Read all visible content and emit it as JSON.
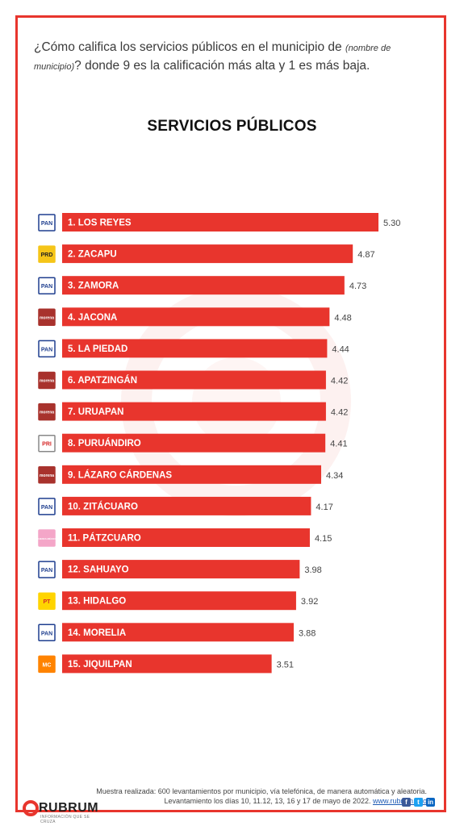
{
  "question": {
    "part1": "¿Cómo califica los servicios públicos en el municipio de ",
    "italic": "(nombre de municipio)",
    "part2": "? donde 9 es la calificación más alta y 1 es más baja."
  },
  "chart_data": {
    "type": "bar",
    "orientation": "horizontal",
    "title": "SERVICIOS PÚBLICOS",
    "xlabel": "",
    "ylabel": "",
    "xlim": [
      0,
      5.3
    ],
    "grid": false,
    "bar_color": "#e8352d",
    "categories": [
      "1. LOS REYES",
      "2. ZACAPU",
      "3. ZAMORA",
      "4. JACONA",
      "5. LA PIEDAD",
      "6. APATZINGÁN",
      "7. URUAPAN",
      "8. PURUÁNDIRO",
      "9. LÁZARO CÁRDENAS",
      "10. ZITÁCUARO",
      "11. PÁTZCUARO",
      "12. SAHUAYO",
      "13. HIDALGO",
      "14. MORELIA",
      "15. JIQUILPAN"
    ],
    "values": [
      5.3,
      4.87,
      4.73,
      4.48,
      4.44,
      4.42,
      4.42,
      4.41,
      4.34,
      4.17,
      4.15,
      3.98,
      3.92,
      3.88,
      3.51
    ],
    "value_labels": [
      "5.30",
      "4.87",
      "4.73",
      "4.48",
      "4.44",
      "4.42",
      "4.42",
      "4.41",
      "4.34",
      "4.17",
      "4.15",
      "3.98",
      "3.92",
      "3.88",
      "3.51"
    ],
    "party_icons": [
      "pan-logo",
      "prd-logo",
      "pan-logo",
      "morena-logo",
      "pan-logo",
      "morena-logo",
      "morena-logo",
      "pri-logo",
      "morena-logo",
      "pan-logo",
      "fuerza-mexico-logo",
      "pan-logo",
      "pt-logo",
      "pan-logo",
      "mc-logo"
    ]
  },
  "party_logos": {
    "pan-logo": {
      "text": "PAN",
      "bg": "#ffffff",
      "border": "#1f3f8f",
      "color": "#1f3f8f"
    },
    "prd-logo": {
      "text": "PRD",
      "bg": "#f5c518",
      "border": "#f5c518",
      "color": "#222222"
    },
    "morena-logo": {
      "text": "morena",
      "bg": "#a8322d",
      "border": "#a8322d",
      "color": "#ffffff"
    },
    "pri-logo": {
      "text": "PRI",
      "bg": "#ffffff",
      "border": "#888888",
      "color": "#d62828"
    },
    "fuerza-mexico-logo": {
      "text": "FUERZA MÉXICO",
      "bg": "#f4a6c8",
      "border": "#f4a6c8",
      "color": "#ffffff"
    },
    "pt-logo": {
      "text": "PT",
      "bg": "#ffd400",
      "border": "#ffd400",
      "color": "#d62828"
    },
    "mc-logo": {
      "text": "MC",
      "bg": "#ff8300",
      "border": "#ff8300",
      "color": "#ffffff"
    }
  },
  "footer": {
    "line1": "Muestra realizada: 600 levantamientos por municipio, vía telefónica, de manera automática y aleatoria.",
    "line2": "Levantamiento los días 10, 11.12, 13, 16 y 17 de mayo  de 2022. ",
    "link": "www.rubrum.info"
  },
  "brand": {
    "name": "RUBRUM",
    "tagline": "INFORMACIÓN QUE SE CRUZA"
  },
  "social_icons": [
    "facebook-icon",
    "twitter-icon",
    "linkedin-icon"
  ]
}
